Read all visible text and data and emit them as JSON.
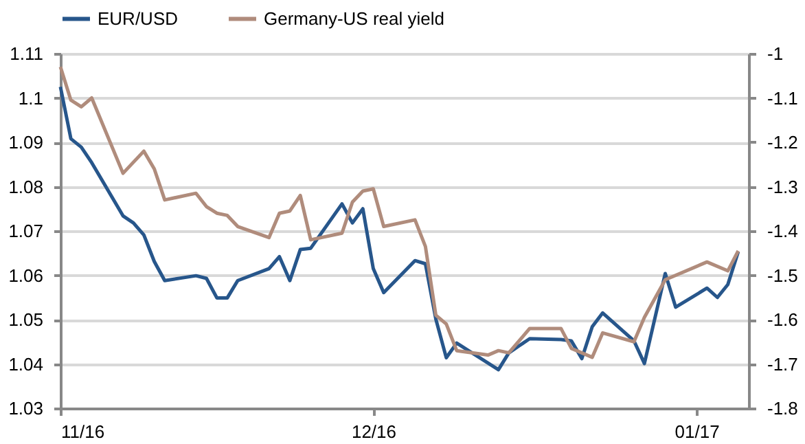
{
  "chart_data": {
    "type": "line",
    "x": [
      "2016-11-01",
      "2016-11-02",
      "2016-11-03",
      "2016-11-04",
      "2016-11-07",
      "2016-11-08",
      "2016-11-09",
      "2016-11-10",
      "2016-11-11",
      "2016-11-14",
      "2016-11-15",
      "2016-11-16",
      "2016-11-17",
      "2016-11-18",
      "2016-11-21",
      "2016-11-22",
      "2016-11-23",
      "2016-11-24",
      "2016-11-25",
      "2016-11-28",
      "2016-11-29",
      "2016-11-30",
      "2016-12-01",
      "2016-12-02",
      "2016-12-05",
      "2016-12-06",
      "2016-12-07",
      "2016-12-08",
      "2016-12-09",
      "2016-12-13",
      "2016-12-14",
      "2016-12-15",
      "2016-12-16",
      "2016-12-19",
      "2016-12-20",
      "2016-12-21",
      "2016-12-22",
      "2016-12-23",
      "2016-12-26",
      "2016-12-27",
      "2016-12-29",
      "2016-12-30",
      "2017-01-02",
      "2017-01-03",
      "2017-01-04",
      "2017-01-05"
    ],
    "series": [
      {
        "name": "EUR/USD",
        "color": "#27568b",
        "values": [
          1.1025,
          1.0908,
          1.0889,
          1.0854,
          1.0734,
          1.0718,
          1.0691,
          1.0631,
          1.0588,
          1.0599,
          1.0593,
          1.0549,
          1.0549,
          1.0588,
          1.0615,
          1.0642,
          1.0588,
          1.0658,
          1.0661,
          1.0761,
          1.0718,
          1.075,
          1.0615,
          1.0561,
          1.0633,
          1.0626,
          1.0501,
          1.0414,
          1.0447,
          1.0387,
          1.0425,
          1.0441,
          1.0457,
          1.0455,
          1.0452,
          1.0412,
          1.0484,
          1.0515,
          1.0452,
          1.0401,
          1.0604,
          1.0528,
          1.0571,
          1.055,
          1.0579,
          1.0653
        ]
      },
      {
        "name": "Germany-US real yield",
        "color": "#b08c7c",
        "axis": "y2",
        "x": [
          "2016-11-01",
          "2016-11-02",
          "2016-11-03",
          "2016-11-04",
          "2016-11-07",
          "2016-11-09",
          "2016-11-10",
          "2016-11-11",
          "2016-11-14",
          "2016-11-15",
          "2016-11-16",
          "2016-11-17",
          "2016-11-18",
          "2016-11-21",
          "2016-11-22",
          "2016-11-23",
          "2016-11-24",
          "2016-11-25",
          "2016-11-28",
          "2016-11-29",
          "2016-11-30",
          "2016-12-01",
          "2016-12-02",
          "2016-12-05",
          "2016-12-06",
          "2016-12-07",
          "2016-12-08",
          "2016-12-09",
          "2016-12-12",
          "2016-12-13",
          "2016-12-14",
          "2016-12-16",
          "2016-12-19",
          "2016-12-20",
          "2016-12-22",
          "2016-12-23",
          "2016-12-26",
          "2016-12-27",
          "2016-12-29",
          "2017-01-02",
          "2017-01-04",
          "2017-01-05"
        ],
        "values": [
          -1.03,
          -1.105,
          -1.12,
          -1.1,
          -1.27,
          -1.22,
          -1.26,
          -1.33,
          -1.315,
          -1.345,
          -1.36,
          -1.365,
          -1.39,
          -1.415,
          -1.36,
          -1.355,
          -1.32,
          -1.42,
          -1.405,
          -1.335,
          -1.31,
          -1.305,
          -1.39,
          -1.375,
          -1.435,
          -1.59,
          -1.61,
          -1.67,
          -1.68,
          -1.67,
          -1.675,
          -1.62,
          -1.62,
          -1.665,
          -1.685,
          -1.63,
          -1.65,
          -1.595,
          -1.51,
          -1.47,
          -1.49,
          -1.445
        ]
      }
    ],
    "xlim": [
      "2016-11-01",
      "2017-01-06"
    ],
    "xticks": [
      {
        "value": "2016-11-01",
        "label": "11/16"
      },
      {
        "value": "2016-12-01",
        "label": "12/16"
      },
      {
        "value": "2017-01-01",
        "label": "01/17"
      }
    ],
    "ylim": [
      1.03,
      1.11
    ],
    "yticks": [
      1.03,
      1.04,
      1.05,
      1.06,
      1.07,
      1.08,
      1.09,
      1.1,
      1.11
    ],
    "y2lim": [
      -1.8,
      -1.0
    ],
    "y2ticks": [
      -1.8,
      -1.7,
      -1.6,
      -1.5,
      -1.4,
      -1.3,
      -1.2,
      -1.1,
      -1
    ],
    "grid": "y",
    "legend": "top"
  }
}
